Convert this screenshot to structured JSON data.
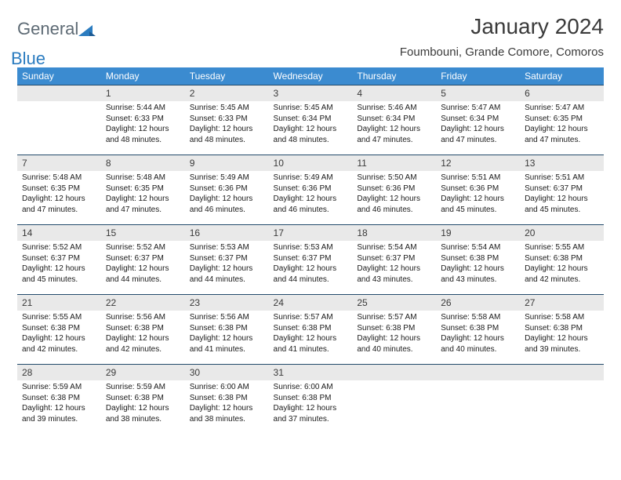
{
  "brand": {
    "general": "General",
    "blue": "Blue"
  },
  "title": "January 2024",
  "subtitle": "Foumbouni, Grande Comore, Comoros",
  "day_headers": [
    "Sunday",
    "Monday",
    "Tuesday",
    "Wednesday",
    "Thursday",
    "Friday",
    "Saturday"
  ],
  "header_bg": "#3b8bd0",
  "header_fg": "#ffffff",
  "daynum_bg": "#e9e9e9",
  "row_border": "#234a6b",
  "weeks": [
    [
      {
        "num": "",
        "sunrise": "",
        "sunset": "",
        "daylight1": "",
        "daylight2": ""
      },
      {
        "num": "1",
        "sunrise": "Sunrise: 5:44 AM",
        "sunset": "Sunset: 6:33 PM",
        "daylight1": "Daylight: 12 hours",
        "daylight2": "and 48 minutes."
      },
      {
        "num": "2",
        "sunrise": "Sunrise: 5:45 AM",
        "sunset": "Sunset: 6:33 PM",
        "daylight1": "Daylight: 12 hours",
        "daylight2": "and 48 minutes."
      },
      {
        "num": "3",
        "sunrise": "Sunrise: 5:45 AM",
        "sunset": "Sunset: 6:34 PM",
        "daylight1": "Daylight: 12 hours",
        "daylight2": "and 48 minutes."
      },
      {
        "num": "4",
        "sunrise": "Sunrise: 5:46 AM",
        "sunset": "Sunset: 6:34 PM",
        "daylight1": "Daylight: 12 hours",
        "daylight2": "and 47 minutes."
      },
      {
        "num": "5",
        "sunrise": "Sunrise: 5:47 AM",
        "sunset": "Sunset: 6:34 PM",
        "daylight1": "Daylight: 12 hours",
        "daylight2": "and 47 minutes."
      },
      {
        "num": "6",
        "sunrise": "Sunrise: 5:47 AM",
        "sunset": "Sunset: 6:35 PM",
        "daylight1": "Daylight: 12 hours",
        "daylight2": "and 47 minutes."
      }
    ],
    [
      {
        "num": "7",
        "sunrise": "Sunrise: 5:48 AM",
        "sunset": "Sunset: 6:35 PM",
        "daylight1": "Daylight: 12 hours",
        "daylight2": "and 47 minutes."
      },
      {
        "num": "8",
        "sunrise": "Sunrise: 5:48 AM",
        "sunset": "Sunset: 6:35 PM",
        "daylight1": "Daylight: 12 hours",
        "daylight2": "and 47 minutes."
      },
      {
        "num": "9",
        "sunrise": "Sunrise: 5:49 AM",
        "sunset": "Sunset: 6:36 PM",
        "daylight1": "Daylight: 12 hours",
        "daylight2": "and 46 minutes."
      },
      {
        "num": "10",
        "sunrise": "Sunrise: 5:49 AM",
        "sunset": "Sunset: 6:36 PM",
        "daylight1": "Daylight: 12 hours",
        "daylight2": "and 46 minutes."
      },
      {
        "num": "11",
        "sunrise": "Sunrise: 5:50 AM",
        "sunset": "Sunset: 6:36 PM",
        "daylight1": "Daylight: 12 hours",
        "daylight2": "and 46 minutes."
      },
      {
        "num": "12",
        "sunrise": "Sunrise: 5:51 AM",
        "sunset": "Sunset: 6:36 PM",
        "daylight1": "Daylight: 12 hours",
        "daylight2": "and 45 minutes."
      },
      {
        "num": "13",
        "sunrise": "Sunrise: 5:51 AM",
        "sunset": "Sunset: 6:37 PM",
        "daylight1": "Daylight: 12 hours",
        "daylight2": "and 45 minutes."
      }
    ],
    [
      {
        "num": "14",
        "sunrise": "Sunrise: 5:52 AM",
        "sunset": "Sunset: 6:37 PM",
        "daylight1": "Daylight: 12 hours",
        "daylight2": "and 45 minutes."
      },
      {
        "num": "15",
        "sunrise": "Sunrise: 5:52 AM",
        "sunset": "Sunset: 6:37 PM",
        "daylight1": "Daylight: 12 hours",
        "daylight2": "and 44 minutes."
      },
      {
        "num": "16",
        "sunrise": "Sunrise: 5:53 AM",
        "sunset": "Sunset: 6:37 PM",
        "daylight1": "Daylight: 12 hours",
        "daylight2": "and 44 minutes."
      },
      {
        "num": "17",
        "sunrise": "Sunrise: 5:53 AM",
        "sunset": "Sunset: 6:37 PM",
        "daylight1": "Daylight: 12 hours",
        "daylight2": "and 44 minutes."
      },
      {
        "num": "18",
        "sunrise": "Sunrise: 5:54 AM",
        "sunset": "Sunset: 6:37 PM",
        "daylight1": "Daylight: 12 hours",
        "daylight2": "and 43 minutes."
      },
      {
        "num": "19",
        "sunrise": "Sunrise: 5:54 AM",
        "sunset": "Sunset: 6:38 PM",
        "daylight1": "Daylight: 12 hours",
        "daylight2": "and 43 minutes."
      },
      {
        "num": "20",
        "sunrise": "Sunrise: 5:55 AM",
        "sunset": "Sunset: 6:38 PM",
        "daylight1": "Daylight: 12 hours",
        "daylight2": "and 42 minutes."
      }
    ],
    [
      {
        "num": "21",
        "sunrise": "Sunrise: 5:55 AM",
        "sunset": "Sunset: 6:38 PM",
        "daylight1": "Daylight: 12 hours",
        "daylight2": "and 42 minutes."
      },
      {
        "num": "22",
        "sunrise": "Sunrise: 5:56 AM",
        "sunset": "Sunset: 6:38 PM",
        "daylight1": "Daylight: 12 hours",
        "daylight2": "and 42 minutes."
      },
      {
        "num": "23",
        "sunrise": "Sunrise: 5:56 AM",
        "sunset": "Sunset: 6:38 PM",
        "daylight1": "Daylight: 12 hours",
        "daylight2": "and 41 minutes."
      },
      {
        "num": "24",
        "sunrise": "Sunrise: 5:57 AM",
        "sunset": "Sunset: 6:38 PM",
        "daylight1": "Daylight: 12 hours",
        "daylight2": "and 41 minutes."
      },
      {
        "num": "25",
        "sunrise": "Sunrise: 5:57 AM",
        "sunset": "Sunset: 6:38 PM",
        "daylight1": "Daylight: 12 hours",
        "daylight2": "and 40 minutes."
      },
      {
        "num": "26",
        "sunrise": "Sunrise: 5:58 AM",
        "sunset": "Sunset: 6:38 PM",
        "daylight1": "Daylight: 12 hours",
        "daylight2": "and 40 minutes."
      },
      {
        "num": "27",
        "sunrise": "Sunrise: 5:58 AM",
        "sunset": "Sunset: 6:38 PM",
        "daylight1": "Daylight: 12 hours",
        "daylight2": "and 39 minutes."
      }
    ],
    [
      {
        "num": "28",
        "sunrise": "Sunrise: 5:59 AM",
        "sunset": "Sunset: 6:38 PM",
        "daylight1": "Daylight: 12 hours",
        "daylight2": "and 39 minutes."
      },
      {
        "num": "29",
        "sunrise": "Sunrise: 5:59 AM",
        "sunset": "Sunset: 6:38 PM",
        "daylight1": "Daylight: 12 hours",
        "daylight2": "and 38 minutes."
      },
      {
        "num": "30",
        "sunrise": "Sunrise: 6:00 AM",
        "sunset": "Sunset: 6:38 PM",
        "daylight1": "Daylight: 12 hours",
        "daylight2": "and 38 minutes."
      },
      {
        "num": "31",
        "sunrise": "Sunrise: 6:00 AM",
        "sunset": "Sunset: 6:38 PM",
        "daylight1": "Daylight: 12 hours",
        "daylight2": "and 37 minutes."
      },
      {
        "num": "",
        "sunrise": "",
        "sunset": "",
        "daylight1": "",
        "daylight2": ""
      },
      {
        "num": "",
        "sunrise": "",
        "sunset": "",
        "daylight1": "",
        "daylight2": ""
      },
      {
        "num": "",
        "sunrise": "",
        "sunset": "",
        "daylight1": "",
        "daylight2": ""
      }
    ]
  ]
}
